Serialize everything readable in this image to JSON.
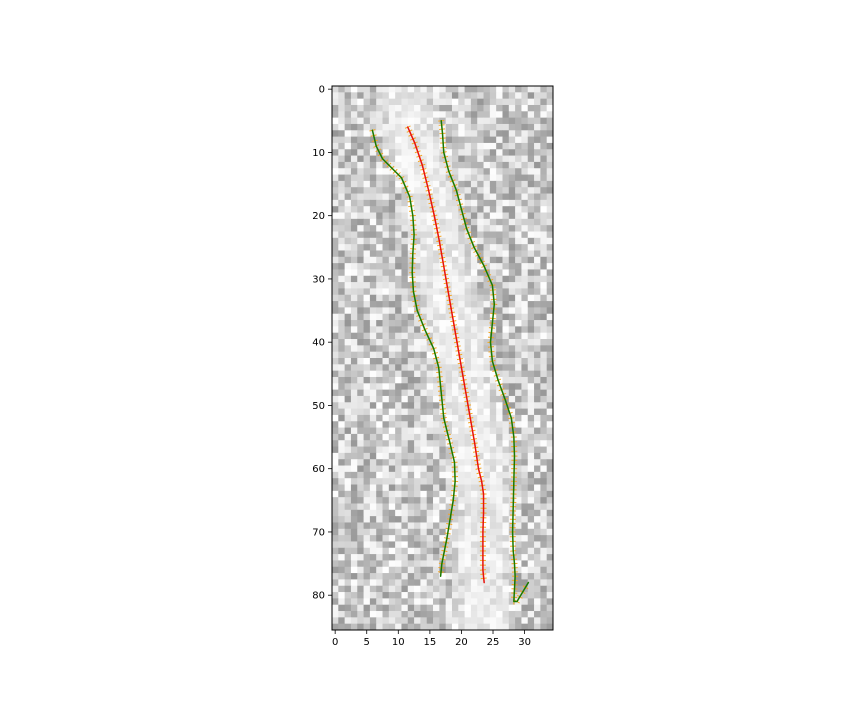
{
  "chart_data": {
    "type": "image-with-curves",
    "title": "",
    "xlabel": "",
    "ylabel": "",
    "xlim": [
      -0.5,
      34.5
    ],
    "ylim": [
      85.5,
      -0.5
    ],
    "xticks": [
      0,
      5,
      10,
      15,
      20,
      25,
      30
    ],
    "yticks": [
      0,
      10,
      20,
      30,
      40,
      50,
      60,
      70,
      80
    ],
    "xtick_labels": [
      "0",
      "5",
      "10",
      "15",
      "20",
      "25",
      "30"
    ],
    "ytick_labels": [
      "0",
      "10",
      "20",
      "30",
      "40",
      "50",
      "60",
      "70",
      "80"
    ],
    "image": {
      "rows": 86,
      "cols": 35,
      "cmap": "gray_r",
      "background": "noise",
      "bright_band": "center channel"
    },
    "colors": {
      "centerline": "#e8120c",
      "boundary": "#1a7a00",
      "normals": "#f5a623",
      "frame": "#000000"
    },
    "series": [
      {
        "role": "left-boundary",
        "color": "#1a7a00",
        "x": [
          5.9,
          6.5,
          7.5,
          9.0,
          10.5,
          11.8,
          12.3,
          12.5,
          12.3,
          12.2,
          12.4,
          13.0,
          14.2,
          15.6,
          16.4,
          16.7,
          17.2,
          18.2,
          18.9,
          19.0,
          18.7,
          18.2,
          17.7,
          17.3,
          16.9,
          16.7
        ],
        "y": [
          6.5,
          9,
          11,
          12.5,
          14,
          17,
          20,
          23,
          26,
          29,
          32,
          35,
          38,
          41,
          44,
          47,
          52,
          56,
          59,
          62,
          65,
          68,
          71,
          73,
          75,
          77
        ]
      },
      {
        "role": "centerline",
        "color": "#e8120c",
        "x": [
          11.5,
          12.6,
          13.8,
          14.8,
          15.7,
          16.5,
          17.2,
          17.9,
          18.6,
          19.3,
          20.0,
          20.7,
          21.4,
          22.1,
          22.7,
          23.2,
          23.5,
          23.5,
          23.4,
          23.4,
          23.4,
          23.6
        ],
        "y": [
          6,
          8.5,
          12,
          16,
          20,
          24,
          28,
          32,
          36,
          40,
          44,
          48,
          52,
          56,
          60,
          62,
          64,
          67,
          70,
          73,
          76,
          78
        ]
      },
      {
        "role": "right-boundary",
        "color": "#1a7a00",
        "x": [
          16.8,
          17.0,
          17.2,
          18.0,
          19.2,
          20.0,
          20.8,
          22.0,
          23.6,
          24.9,
          25.2,
          24.9,
          24.6,
          24.9,
          25.8,
          26.9,
          27.9,
          28.3,
          28.4,
          28.3,
          28.2,
          28.1,
          28.2,
          28.4,
          28.5,
          28.3,
          28.8,
          29.7,
          30.6
        ],
        "y": [
          5,
          7,
          10,
          13,
          16,
          19,
          22,
          25,
          28,
          31,
          34,
          37,
          40,
          43,
          46,
          49,
          52,
          55,
          58,
          62,
          66,
          70,
          73,
          75,
          77,
          81,
          81,
          79.5,
          78
        ]
      }
    ]
  }
}
